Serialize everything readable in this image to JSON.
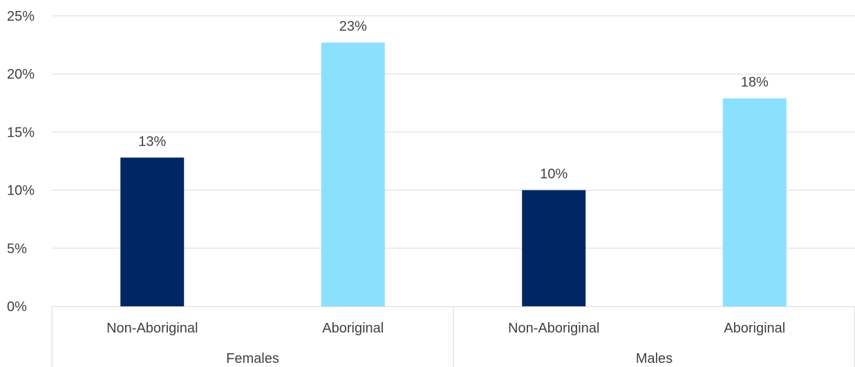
{
  "chart_data": {
    "type": "bar",
    "ylim": [
      0,
      25
    ],
    "y_ticks": [
      0,
      5,
      10,
      15,
      20,
      25
    ],
    "y_tick_format": "percent",
    "grid": true,
    "legend": "none",
    "groups": [
      {
        "name": "Females",
        "bars": [
          {
            "category": "Non-Aboriginal",
            "value": 12.8,
            "label": "13%",
            "color": "#002664"
          },
          {
            "category": "Aboriginal",
            "value": 22.7,
            "label": "23%",
            "color": "#8CE0FF"
          }
        ]
      },
      {
        "name": "Males",
        "bars": [
          {
            "category": "Non-Aboriginal",
            "value": 10.0,
            "label": "10%",
            "color": "#002664"
          },
          {
            "category": "Aboriginal",
            "value": 17.9,
            "label": "18%",
            "color": "#8CE0FF"
          }
        ]
      }
    ],
    "colors": {
      "non_aboriginal": "#002664",
      "aboriginal": "#8CE0FF",
      "gridline": "#D9D9D9",
      "text": "#404040"
    }
  }
}
